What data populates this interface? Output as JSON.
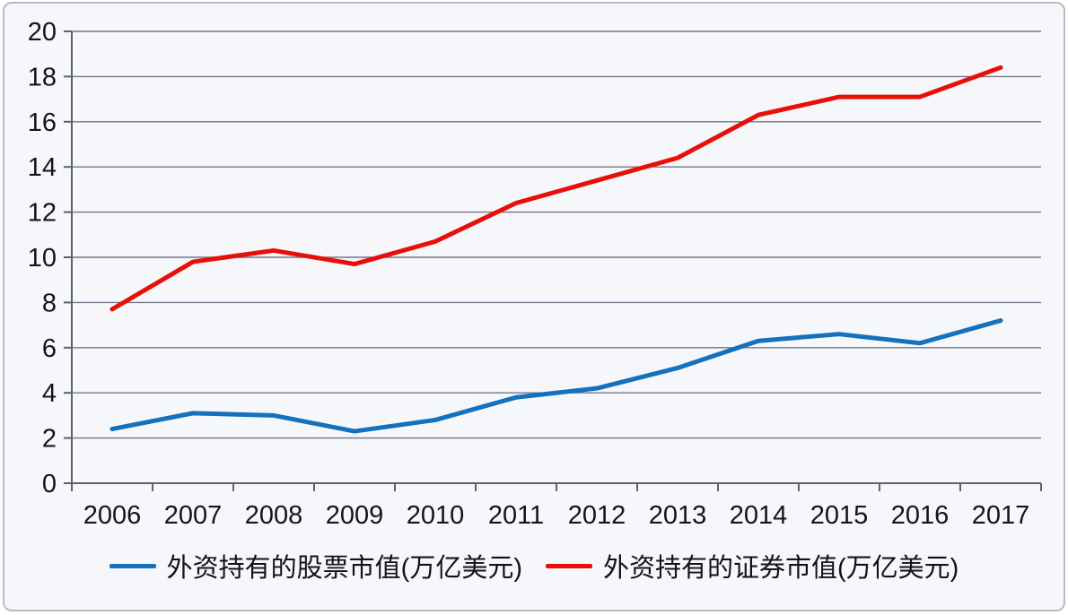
{
  "chart_data": {
    "type": "line",
    "categories": [
      "2006",
      "2007",
      "2008",
      "2009",
      "2010",
      "2011",
      "2012",
      "2013",
      "2014",
      "2015",
      "2016",
      "2017"
    ],
    "series": [
      {
        "name": "外资持有的股票市值(万亿美元)",
        "color": "#1371bd",
        "values": [
          2.4,
          3.1,
          3.0,
          2.3,
          2.8,
          3.8,
          4.2,
          5.1,
          6.3,
          6.6,
          6.2,
          7.2
        ]
      },
      {
        "name": "外资持有的证券市值(万亿美元)",
        "color": "#e80f0a",
        "values": [
          7.7,
          9.8,
          10.3,
          9.7,
          10.7,
          12.4,
          13.4,
          14.4,
          16.3,
          17.1,
          17.1,
          18.4
        ]
      }
    ],
    "title": "",
    "xlabel": "",
    "ylabel": "",
    "ylim": [
      0,
      20
    ],
    "yticks": [
      0,
      2,
      4,
      6,
      8,
      10,
      12,
      14,
      16,
      18,
      20
    ],
    "grid": true,
    "legend_position": "bottom"
  },
  "colors": {
    "background": "#f6f7fb",
    "gridline": "#73758a",
    "axis": "#5e6075",
    "text": "#14141d"
  }
}
